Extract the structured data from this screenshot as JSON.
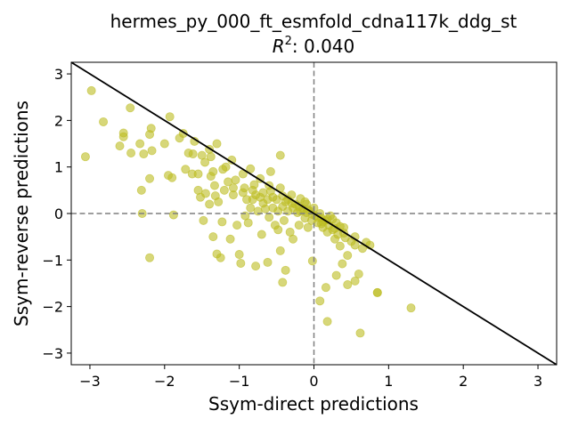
{
  "chart_data": {
    "type": "scatter",
    "title": "hermes_py_000_ft_esmfold_cdna117k_ddg_st",
    "subtitle_prefix": "R",
    "subtitle_sup": "2",
    "subtitle_value": ": 0.040",
    "xlabel": "Ssym-direct predictions",
    "ylabel": "Ssym-reverse predictions",
    "xlim": [
      -3.25,
      3.25
    ],
    "ylim": [
      -3.25,
      3.25
    ],
    "xticks": [
      -3,
      -2,
      -1,
      0,
      1,
      2,
      3
    ],
    "yticks": [
      -3,
      -2,
      -1,
      0,
      1,
      2,
      3
    ],
    "xtick_labels": [
      "−3",
      "−2",
      "−1",
      "0",
      "1",
      "2",
      "3"
    ],
    "ytick_labels": [
      "−3",
      "−2",
      "−1",
      "0",
      "1",
      "2",
      "3"
    ],
    "point_color": "#bcbd22",
    "reference_lines": {
      "dashed_at_zero": true,
      "diagonal_y_equals_minus_x": true
    },
    "points": [
      [
        -3.06,
        1.22
      ],
      [
        -2.98,
        2.64
      ],
      [
        -2.82,
        1.97
      ],
      [
        -2.6,
        1.45
      ],
      [
        -2.55,
        1.73
      ],
      [
        -2.55,
        1.65
      ],
      [
        -2.46,
        2.27
      ],
      [
        -2.45,
        1.3
      ],
      [
        -2.33,
        1.5
      ],
      [
        -2.31,
        0.5
      ],
      [
        -2.3,
        0.0
      ],
      [
        -2.28,
        1.28
      ],
      [
        -2.2,
        1.7
      ],
      [
        -2.2,
        0.75
      ],
      [
        -2.2,
        -0.95
      ],
      [
        -2.18,
        1.83
      ],
      [
        -2.17,
        1.35
      ],
      [
        -2.0,
        1.5
      ],
      [
        -1.93,
        2.08
      ],
      [
        -1.95,
        0.82
      ],
      [
        -1.9,
        0.77
      ],
      [
        -1.88,
        -0.03
      ],
      [
        -1.8,
        1.62
      ],
      [
        -1.75,
        1.72
      ],
      [
        -1.72,
        0.95
      ],
      [
        -1.68,
        1.3
      ],
      [
        -1.63,
        0.85
      ],
      [
        -1.6,
        1.55
      ],
      [
        -1.55,
        0.5
      ],
      [
        -1.52,
        0.35
      ],
      [
        -1.5,
        1.25
      ],
      [
        -1.46,
        1.1
      ],
      [
        -1.48,
        -0.15
      ],
      [
        -1.45,
        0.43
      ],
      [
        -1.4,
        1.38
      ],
      [
        -1.38,
        0.8
      ],
      [
        -1.35,
        0.9
      ],
      [
        -1.33,
        0.6
      ],
      [
        -1.3,
        1.5
      ],
      [
        -1.32,
        0.38
      ],
      [
        -1.28,
        0.25
      ],
      [
        -1.25,
        -0.95
      ],
      [
        -1.3,
        -0.87
      ],
      [
        -1.23,
        -0.18
      ],
      [
        -1.2,
        0.5
      ],
      [
        -1.18,
        1.0
      ],
      [
        -1.15,
        0.68
      ],
      [
        -1.12,
        -0.55
      ],
      [
        -1.1,
        1.15
      ],
      [
        -1.08,
        0.4
      ],
      [
        -1.05,
        0.72
      ],
      [
        -1.03,
        -0.25
      ],
      [
        -1.0,
        -0.88
      ],
      [
        -0.98,
        -1.07
      ],
      [
        -0.95,
        0.85
      ],
      [
        -0.93,
        0.55
      ],
      [
        -0.9,
        0.3
      ],
      [
        -0.88,
        -0.2
      ],
      [
        -0.85,
        0.96
      ],
      [
        -0.82,
        0.5
      ],
      [
        -0.8,
        0.62
      ],
      [
        -0.78,
        -1.13
      ],
      [
        -0.75,
        0.05
      ],
      [
        -0.72,
        0.35
      ],
      [
        -0.7,
        -0.45
      ],
      [
        -0.68,
        0.22
      ],
      [
        -0.65,
        0.1
      ],
      [
        -0.62,
        -1.05
      ],
      [
        -0.6,
        0.6
      ],
      [
        -0.58,
        0.48
      ],
      [
        -0.55,
        0.12
      ],
      [
        -0.52,
        -0.25
      ],
      [
        -0.5,
        0.3
      ],
      [
        -0.48,
        -0.35
      ],
      [
        -0.45,
        0.55
      ],
      [
        -0.42,
        0.15
      ],
      [
        -0.4,
        -0.15
      ],
      [
        -0.38,
        0.25
      ],
      [
        -0.35,
        0.05
      ],
      [
        -0.32,
        -0.4
      ],
      [
        -0.3,
        0.4
      ],
      [
        -0.28,
        -0.55
      ],
      [
        -0.25,
        0.2
      ],
      [
        -0.22,
        0.02
      ],
      [
        -0.2,
        -0.25
      ],
      [
        -0.18,
        0.32
      ],
      [
        -0.15,
        0.1
      ],
      [
        -0.12,
        -0.1
      ],
      [
        -0.1,
        0.2
      ],
      [
        -0.08,
        -0.3
      ],
      [
        -0.05,
        0.05
      ],
      [
        -0.03,
        -0.15
      ],
      [
        0.0,
        0.12
      ],
      [
        0.02,
        -0.05
      ],
      [
        0.05,
        -0.2
      ],
      [
        0.08,
        0.0
      ],
      [
        0.1,
        -0.1
      ],
      [
        0.12,
        -0.3
      ],
      [
        0.15,
        -0.15
      ],
      [
        0.18,
        -0.4
      ],
      [
        0.2,
        -0.25
      ],
      [
        0.22,
        -0.05
      ],
      [
        0.25,
        -0.35
      ],
      [
        0.28,
        -0.55
      ],
      [
        0.3,
        -0.2
      ],
      [
        0.32,
        -0.45
      ],
      [
        0.35,
        -0.7
      ],
      [
        0.4,
        -0.3
      ],
      [
        0.45,
        -0.9
      ],
      [
        0.5,
        -0.6
      ],
      [
        0.55,
        -0.5
      ],
      [
        0.6,
        -1.3
      ],
      [
        0.65,
        -0.75
      ],
      [
        0.7,
        -0.62
      ],
      [
        0.75,
        -0.68
      ],
      [
        0.85,
        -1.7
      ],
      [
        1.3,
        -2.03
      ],
      [
        0.16,
        -1.59
      ],
      [
        0.18,
        -2.32
      ],
      [
        0.08,
        -1.88
      ],
      [
        0.3,
        -1.33
      ],
      [
        0.38,
        -1.08
      ],
      [
        0.45,
        -1.53
      ],
      [
        0.55,
        -1.45
      ],
      [
        0.62,
        -2.57
      ],
      [
        0.85,
        -1.7
      ],
      [
        -0.02,
        -1.02
      ],
      [
        -0.38,
        -1.22
      ],
      [
        -0.42,
        -1.48
      ],
      [
        -0.45,
        -0.8
      ],
      [
        -0.45,
        1.25
      ],
      [
        -0.72,
        0.75
      ],
      [
        -0.78,
        0.4
      ],
      [
        -0.85,
        0.12
      ],
      [
        -0.92,
        -0.05
      ],
      [
        -0.6,
        -0.08
      ],
      [
        -0.58,
        0.9
      ],
      [
        -0.62,
        0.3
      ],
      [
        -0.48,
        0.05
      ],
      [
        -0.35,
        0.3
      ],
      [
        -0.28,
        0.12
      ],
      [
        -0.18,
        0.05
      ],
      [
        -0.12,
        0.25
      ],
      [
        -0.08,
        0.08
      ],
      [
        -0.02,
        -0.02
      ],
      [
        0.05,
        -0.08
      ],
      [
        0.12,
        -0.18
      ],
      [
        0.25,
        -0.12
      ],
      [
        0.35,
        -0.28
      ],
      [
        0.42,
        -0.52
      ],
      [
        -1.55,
        0.85
      ],
      [
        -1.62,
        1.28
      ],
      [
        -1.38,
        1.22
      ],
      [
        -1.22,
        0.95
      ],
      [
        -1.08,
        0.55
      ],
      [
        -0.95,
        0.45
      ],
      [
        -0.82,
        0.3
      ],
      [
        -0.68,
        0.45
      ],
      [
        -0.55,
        0.35
      ],
      [
        -0.42,
        0.38
      ],
      [
        -0.3,
        0.22
      ],
      [
        -0.2,
        0.15
      ],
      [
        -0.1,
        0.02
      ],
      [
        0.1,
        -0.22
      ],
      [
        0.18,
        -0.12
      ],
      [
        0.28,
        -0.32
      ],
      [
        0.4,
        -0.42
      ],
      [
        0.55,
        -0.68
      ],
      [
        -1.4,
        0.2
      ],
      [
        -1.35,
        -0.5
      ]
    ]
  }
}
